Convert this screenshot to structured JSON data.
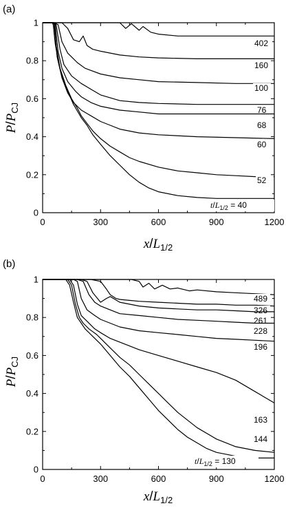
{
  "chart_data": [
    {
      "type": "line",
      "panel_label": "(a)",
      "ylabel": {
        "main": "P",
        "sep": "/",
        "denom": "P",
        "sub": "CJ"
      },
      "xlabel": {
        "main": "x",
        "sep": "/",
        "denom": "L",
        "sub": "1/2"
      },
      "xlim": [
        0,
        1200
      ],
      "ylim": [
        0,
        1
      ],
      "xticks": [
        "0",
        "300",
        "600",
        "900",
        "1200"
      ],
      "yticks": [
        "0",
        "0.2",
        "0.4",
        "0.6",
        "0.8",
        "1"
      ],
      "annotation": {
        "prefix": "t",
        "sep": "/",
        "denom": "L",
        "sub": "1/2",
        "value": " = 40"
      },
      "series": [
        {
          "name": "402",
          "x": [
            0,
            60,
            150,
            300,
            400,
            430,
            460,
            500,
            520,
            560,
            600,
            700,
            900,
            1200
          ],
          "y": [
            1,
            1,
            1,
            1,
            1,
            0.97,
            0.995,
            0.96,
            0.98,
            0.95,
            0.94,
            0.93,
            0.93,
            0.93
          ]
        },
        {
          "name": "160",
          "x": [
            0,
            60,
            100,
            130,
            160,
            190,
            210,
            230,
            260,
            300,
            400,
            500,
            600,
            800,
            1000,
            1200
          ],
          "y": [
            1,
            1,
            1,
            0.97,
            0.91,
            0.9,
            0.93,
            0.88,
            0.86,
            0.85,
            0.83,
            0.82,
            0.815,
            0.81,
            0.81,
            0.81
          ]
        },
        {
          "name": "100",
          "x": [
            0,
            60,
            80,
            100,
            120,
            130,
            150,
            180,
            220,
            300,
            400,
            500,
            600,
            800,
            1000,
            1200
          ],
          "y": [
            1,
            1,
            0.99,
            0.9,
            0.86,
            0.84,
            0.82,
            0.79,
            0.76,
            0.73,
            0.71,
            0.7,
            0.69,
            0.685,
            0.68,
            0.68
          ]
        },
        {
          "name": "76",
          "x": [
            0,
            60,
            70,
            90,
            110,
            150,
            200,
            250,
            300,
            400,
            500,
            600,
            800,
            1000,
            1200
          ],
          "y": [
            1,
            1,
            0.99,
            0.86,
            0.78,
            0.72,
            0.68,
            0.65,
            0.62,
            0.59,
            0.58,
            0.575,
            0.57,
            0.57,
            0.57
          ]
        },
        {
          "name": "68",
          "x": [
            0,
            60,
            65,
            80,
            100,
            130,
            170,
            200,
            250,
            300,
            400,
            500,
            600,
            800,
            1000,
            1200
          ],
          "y": [
            1,
            1,
            0.99,
            0.85,
            0.76,
            0.69,
            0.64,
            0.61,
            0.58,
            0.56,
            0.54,
            0.53,
            0.52,
            0.52,
            0.52,
            0.52
          ]
        },
        {
          "name": "60",
          "x": [
            0,
            55,
            62,
            75,
            100,
            130,
            160,
            200,
            250,
            300,
            350,
            400,
            500,
            600,
            800,
            1000,
            1200
          ],
          "y": [
            1,
            1,
            0.99,
            0.82,
            0.71,
            0.63,
            0.58,
            0.54,
            0.51,
            0.48,
            0.46,
            0.44,
            0.42,
            0.41,
            0.4,
            0.395,
            0.39
          ]
        },
        {
          "name": "52",
          "x": [
            0,
            55,
            60,
            70,
            90,
            120,
            150,
            180,
            200,
            230,
            260,
            300,
            350,
            400,
            450,
            500,
            600,
            700,
            800,
            900,
            1000,
            1100,
            1200
          ],
          "y": [
            1,
            1,
            0.99,
            0.88,
            0.76,
            0.67,
            0.6,
            0.55,
            0.51,
            0.47,
            0.43,
            0.39,
            0.35,
            0.32,
            0.29,
            0.27,
            0.24,
            0.22,
            0.21,
            0.2,
            0.195,
            0.19,
            0.19
          ]
        },
        {
          "name": "t/L1/2 = 40",
          "x": [
            0,
            50,
            55,
            65,
            80,
            100,
            130,
            160,
            200,
            230,
            260,
            300,
            350,
            400,
            450,
            500,
            550,
            600,
            700,
            800,
            900,
            1000,
            1100,
            1200
          ],
          "y": [
            1,
            1,
            0.99,
            0.89,
            0.8,
            0.72,
            0.64,
            0.57,
            0.5,
            0.46,
            0.41,
            0.36,
            0.3,
            0.25,
            0.2,
            0.16,
            0.13,
            0.11,
            0.09,
            0.08,
            0.075,
            0.075,
            0.075,
            0.075
          ]
        }
      ]
    },
    {
      "type": "line",
      "panel_label": "(b)",
      "ylabel": {
        "main": "P",
        "sep": "/",
        "denom": "P",
        "sub": "CJ"
      },
      "xlabel": {
        "main": "x",
        "sep": "/",
        "denom": "L",
        "sub": "1/2"
      },
      "xlim": [
        0,
        1200
      ],
      "ylim": [
        0,
        1
      ],
      "xticks": [
        "0",
        "300",
        "600",
        "900",
        "1200"
      ],
      "yticks": [
        "0",
        "0.2",
        "0.4",
        "0.6",
        "0.8",
        "1"
      ],
      "annotation": {
        "prefix": "t",
        "sep": "/",
        "denom": "L",
        "sub": "1/2",
        "value": " = 130"
      },
      "series": [
        {
          "name": "489",
          "x": [
            0,
            300,
            400,
            460,
            500,
            520,
            550,
            580,
            620,
            660,
            700,
            760,
            800,
            900,
            1000,
            1100,
            1200
          ],
          "y": [
            1,
            1,
            1,
            1,
            0.99,
            0.96,
            0.98,
            0.95,
            0.97,
            0.95,
            0.955,
            0.94,
            0.945,
            0.935,
            0.93,
            0.925,
            0.92
          ]
        },
        {
          "name": "326",
          "x": [
            0,
            250,
            300,
            330,
            350,
            380,
            400,
            450,
            500,
            600,
            700,
            800,
            900,
            1000,
            1100,
            1200
          ],
          "y": [
            1,
            1,
            0.99,
            0.95,
            0.92,
            0.9,
            0.895,
            0.89,
            0.885,
            0.88,
            0.875,
            0.87,
            0.87,
            0.865,
            0.865,
            0.86
          ]
        },
        {
          "name": "261",
          "x": [
            0,
            200,
            230,
            260,
            300,
            330,
            350,
            400,
            450,
            500,
            600,
            700,
            800,
            900,
            1000,
            1100,
            1200
          ],
          "y": [
            1,
            1,
            0.99,
            0.93,
            0.88,
            0.9,
            0.91,
            0.88,
            0.87,
            0.86,
            0.85,
            0.845,
            0.84,
            0.84,
            0.835,
            0.83,
            0.83
          ]
        },
        {
          "name": "228",
          "x": [
            0,
            180,
            210,
            240,
            270,
            300,
            350,
            400,
            500,
            600,
            700,
            800,
            900,
            1000,
            1100,
            1200
          ],
          "y": [
            1,
            1,
            0.99,
            0.92,
            0.88,
            0.86,
            0.84,
            0.82,
            0.81,
            0.8,
            0.79,
            0.785,
            0.78,
            0.775,
            0.77,
            0.77
          ]
        },
        {
          "name": "196",
          "x": [
            0,
            160,
            180,
            200,
            230,
            270,
            300,
            350,
            400,
            500,
            600,
            700,
            800,
            900,
            1000,
            1100,
            1200
          ],
          "y": [
            1,
            1,
            0.99,
            0.9,
            0.84,
            0.81,
            0.79,
            0.77,
            0.75,
            0.73,
            0.72,
            0.71,
            0.7,
            0.69,
            0.685,
            0.68,
            0.675
          ]
        },
        {
          "name": "163",
          "x": [
            0,
            140,
            160,
            180,
            200,
            230,
            270,
            300,
            350,
            400,
            450,
            500,
            600,
            700,
            800,
            900,
            1000,
            1100,
            1200
          ],
          "y": [
            1,
            1,
            0.97,
            0.87,
            0.81,
            0.78,
            0.74,
            0.72,
            0.69,
            0.67,
            0.65,
            0.63,
            0.6,
            0.57,
            0.54,
            0.51,
            0.47,
            0.41,
            0.35
          ]
        },
        {
          "name": "144",
          "x": [
            0,
            130,
            150,
            170,
            190,
            210,
            240,
            280,
            300,
            350,
            400,
            450,
            500,
            550,
            600,
            650,
            700,
            800,
            900,
            1000,
            1100,
            1200
          ],
          "y": [
            1,
            1,
            0.97,
            0.87,
            0.8,
            0.77,
            0.74,
            0.71,
            0.69,
            0.64,
            0.59,
            0.55,
            0.5,
            0.45,
            0.4,
            0.35,
            0.3,
            0.22,
            0.16,
            0.12,
            0.1,
            0.09
          ]
        },
        {
          "name": "t/L1/2 = 130",
          "x": [
            0,
            120,
            140,
            160,
            180,
            200,
            220,
            260,
            300,
            350,
            400,
            450,
            500,
            550,
            600,
            650,
            700,
            750,
            800,
            850,
            900,
            1000,
            1100,
            1200
          ],
          "y": [
            1,
            1,
            0.97,
            0.88,
            0.8,
            0.77,
            0.74,
            0.7,
            0.66,
            0.6,
            0.54,
            0.49,
            0.43,
            0.37,
            0.31,
            0.26,
            0.21,
            0.17,
            0.14,
            0.11,
            0.09,
            0.07,
            0.06,
            0.06
          ]
        }
      ]
    }
  ]
}
